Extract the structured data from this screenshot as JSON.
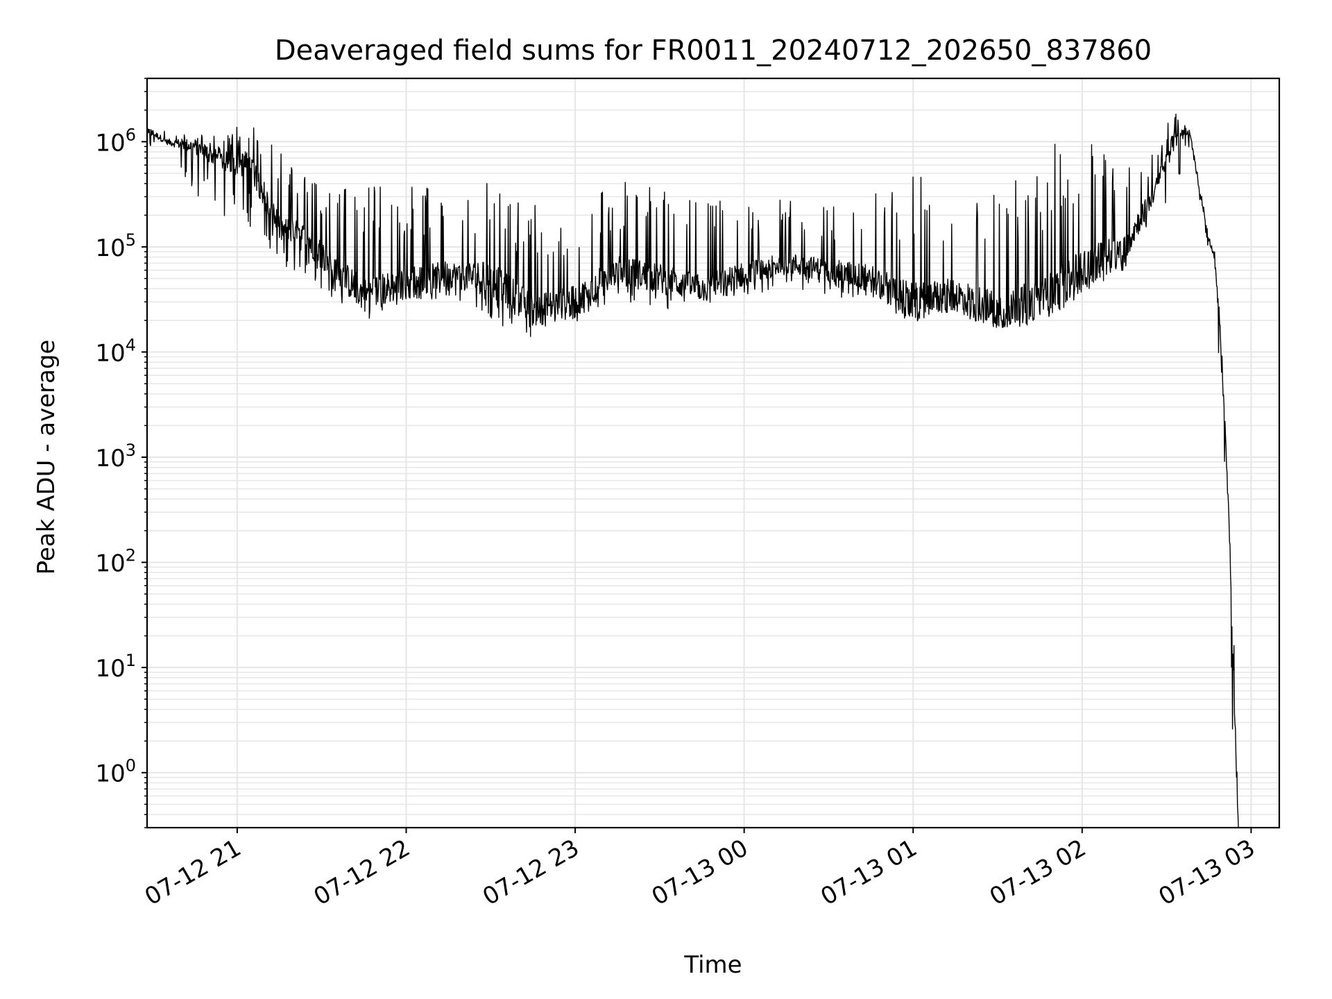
{
  "chart_data": {
    "type": "line",
    "title": "Deaveraged field sums for FR0011_20240712_202650_837860",
    "xlabel": "Time",
    "ylabel": "Peak ADU - average",
    "yscale": "log",
    "ylim": [
      0.3,
      4000000
    ],
    "xlim": [
      "2024-07-12 20:28",
      "2024-07-13 03:10"
    ],
    "grid": true,
    "line_color": "#000000",
    "grid_color": "#e6e6e6",
    "xticks": [
      {
        "value": "2024-07-12 21:00",
        "label": "07-12 21"
      },
      {
        "value": "2024-07-12 22:00",
        "label": "07-12 22"
      },
      {
        "value": "2024-07-12 23:00",
        "label": "07-12 23"
      },
      {
        "value": "2024-07-13 00:00",
        "label": "07-13 00"
      },
      {
        "value": "2024-07-13 01:00",
        "label": "07-13 01"
      },
      {
        "value": "2024-07-13 02:00",
        "label": "07-13 02"
      },
      {
        "value": "2024-07-13 03:00",
        "label": "07-13 03"
      }
    ],
    "yticks": [
      {
        "value": 1,
        "base": "10",
        "exp": "0"
      },
      {
        "value": 10,
        "base": "10",
        "exp": "1"
      },
      {
        "value": 100,
        "base": "10",
        "exp": "2"
      },
      {
        "value": 1000,
        "base": "10",
        "exp": "3"
      },
      {
        "value": 10000,
        "base": "10",
        "exp": "4"
      },
      {
        "value": 100000,
        "base": "10",
        "exp": "5"
      },
      {
        "value": 1000000,
        "base": "10",
        "exp": "6"
      }
    ],
    "series": [
      {
        "style": "noisy trace, values approximate (envelope read off chart)",
        "x": [
          "2024-07-12 20:28",
          "2024-07-12 20:35",
          "2024-07-12 20:45",
          "2024-07-12 20:55",
          "2024-07-12 21:05",
          "2024-07-12 21:15",
          "2024-07-12 21:25",
          "2024-07-12 21:35",
          "2024-07-12 21:45",
          "2024-07-12 22:00",
          "2024-07-12 22:15",
          "2024-07-12 22:30",
          "2024-07-12 22:45",
          "2024-07-12 23:00",
          "2024-07-12 23:15",
          "2024-07-12 23:30",
          "2024-07-12 23:45",
          "2024-07-13 00:00",
          "2024-07-13 00:15",
          "2024-07-13 00:30",
          "2024-07-13 00:45",
          "2024-07-13 01:00",
          "2024-07-13 01:15",
          "2024-07-13 01:30",
          "2024-07-13 01:45",
          "2024-07-13 02:00",
          "2024-07-13 02:15",
          "2024-07-13 02:25",
          "2024-07-13 02:33",
          "2024-07-13 02:38",
          "2024-07-13 02:42",
          "2024-07-13 02:45",
          "2024-07-13 02:47",
          "2024-07-13 02:49",
          "2024-07-13 02:50",
          "2024-07-13 02:51",
          "2024-07-13 02:52",
          "2024-07-13 02:53",
          "2024-07-13 02:54",
          "2024-07-13 02:55",
          "2024-07-13 02:55:30"
        ],
        "y": [
          1300000,
          1000000,
          900000,
          650000,
          600000,
          150000,
          120000,
          60000,
          35000,
          45000,
          55000,
          50000,
          25000,
          30000,
          60000,
          50000,
          40000,
          55000,
          70000,
          60000,
          50000,
          30000,
          35000,
          25000,
          30000,
          60000,
          100000,
          300000,
          1100000,
          1300000,
          300000,
          120000,
          80000,
          15000,
          5000,
          1500,
          300,
          50,
          5,
          0.6,
          0.3
        ],
        "spike_max": [
          1700000,
          1300000,
          1200000,
          1100000,
          1900000,
          800000,
          700000,
          400000,
          400000,
          420000,
          350000,
          450000,
          250000,
          300000,
          450000,
          350000,
          300000,
          300000,
          280000,
          250000,
          350000,
          480000,
          420000,
          600000,
          900000,
          1200000,
          1100000,
          800000,
          2000000,
          1400000,
          350000,
          150000,
          100000,
          20000,
          8000,
          1500,
          400,
          100,
          20,
          1,
          0.5
        ],
        "spike_min": [
          900000,
          800000,
          300000,
          200000,
          150000,
          70000,
          50000,
          25000,
          20000,
          25000,
          35000,
          20000,
          13000,
          18000,
          30000,
          25000,
          28000,
          35000,
          40000,
          35000,
          28000,
          18000,
          22000,
          17000,
          18000,
          35000,
          60000,
          180000,
          300000,
          900000,
          250000,
          90000,
          60000,
          2000,
          800,
          300,
          50,
          5,
          0.5,
          0.3,
          0.3
        ]
      }
    ]
  }
}
